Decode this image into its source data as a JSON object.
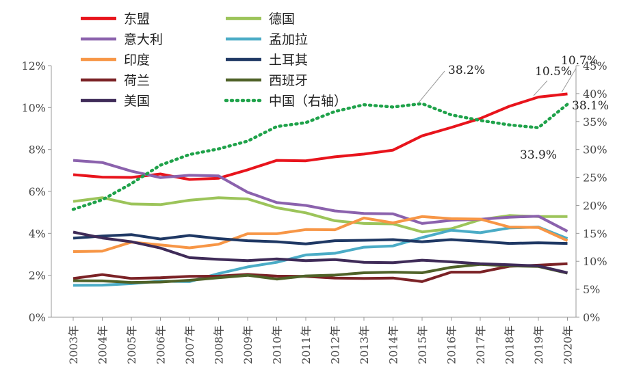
{
  "chart_data": {
    "type": "line",
    "categories": [
      "2003年",
      "2004年",
      "2005年",
      "2006年",
      "2007年",
      "2008年",
      "2009年",
      "2010年",
      "2011年",
      "2012年",
      "2013年",
      "2014年",
      "2015年",
      "2016年",
      "2017年",
      "2018年",
      "2019年",
      "2020年"
    ],
    "y_left": {
      "ticks": [
        "0%",
        "2%",
        "4%",
        "6%",
        "8%",
        "10%",
        "12%"
      ],
      "min": 0,
      "max": 12
    },
    "y_right": {
      "ticks": [
        "0%",
        "5%",
        "10%",
        "15%",
        "20%",
        "25%",
        "30%",
        "35%",
        "40%",
        "45%"
      ],
      "min": 0,
      "max": 45
    },
    "legend_columns": 2,
    "series": [
      {
        "name": "东盟",
        "axis": "left",
        "color": "#e8141c",
        "dashed": false,
        "values": [
          6.8,
          6.68,
          6.67,
          6.83,
          6.57,
          6.63,
          7.03,
          7.48,
          7.46,
          7.65,
          7.78,
          7.97,
          8.65,
          9.05,
          9.48,
          10.06,
          10.5,
          10.65
        ]
      },
      {
        "name": "德国",
        "axis": "left",
        "color": "#9cc45a",
        "dashed": false,
        "values": [
          5.52,
          5.7,
          5.4,
          5.37,
          5.58,
          5.7,
          5.64,
          5.22,
          4.98,
          4.6,
          4.47,
          4.45,
          4.07,
          4.22,
          4.65,
          4.85,
          4.8,
          4.8
        ]
      },
      {
        "name": "意大利",
        "axis": "left",
        "color": "#8b62ad",
        "dashed": false,
        "values": [
          7.48,
          7.38,
          6.97,
          6.66,
          6.77,
          6.74,
          5.96,
          5.47,
          5.33,
          5.07,
          4.95,
          4.93,
          4.47,
          4.62,
          4.67,
          4.77,
          4.82,
          4.1
        ]
      },
      {
        "name": "孟加拉",
        "axis": "left",
        "color": "#4bacc6",
        "dashed": false,
        "values": [
          1.52,
          1.53,
          1.6,
          1.72,
          1.7,
          2.08,
          2.4,
          2.62,
          2.97,
          3.05,
          3.34,
          3.4,
          3.8,
          4.15,
          4.03,
          4.26,
          4.3,
          3.75
        ]
      },
      {
        "name": "印度",
        "axis": "left",
        "color": "#f79646",
        "dashed": false,
        "values": [
          3.13,
          3.15,
          3.58,
          3.45,
          3.31,
          3.48,
          3.98,
          3.98,
          4.18,
          4.17,
          4.73,
          4.5,
          4.8,
          4.7,
          4.68,
          4.3,
          4.28,
          3.65
        ]
      },
      {
        "name": "土耳其",
        "axis": "left",
        "color": "#1f3864",
        "dashed": false,
        "values": [
          3.77,
          3.87,
          3.94,
          3.73,
          3.9,
          3.75,
          3.65,
          3.6,
          3.5,
          3.65,
          3.67,
          3.7,
          3.6,
          3.7,
          3.62,
          3.52,
          3.55,
          3.52
        ]
      },
      {
        "name": "荷兰",
        "axis": "left",
        "color": "#7b2226",
        "dashed": false,
        "values": [
          1.85,
          2.03,
          1.85,
          1.88,
          1.95,
          1.96,
          2.04,
          1.96,
          1.95,
          1.87,
          1.85,
          1.87,
          1.7,
          2.15,
          2.15,
          2.43,
          2.48,
          2.55
        ]
      },
      {
        "name": "西班牙",
        "axis": "left",
        "color": "#4f6228",
        "dashed": false,
        "values": [
          1.74,
          1.73,
          1.66,
          1.68,
          1.76,
          1.88,
          2.0,
          1.82,
          1.97,
          2.01,
          2.12,
          2.15,
          2.12,
          2.38,
          2.52,
          2.45,
          2.42,
          2.1
        ]
      },
      {
        "name": "美国",
        "axis": "left",
        "color": "#3f2b58",
        "dashed": false,
        "values": [
          4.06,
          3.78,
          3.6,
          3.3,
          2.84,
          2.76,
          2.7,
          2.78,
          2.7,
          2.75,
          2.62,
          2.6,
          2.72,
          2.64,
          2.55,
          2.5,
          2.45,
          2.12
        ]
      },
      {
        "name": "中国（右轴）",
        "axis": "right",
        "color": "#1fa24a",
        "dashed": true,
        "values": [
          19.3,
          21.0,
          23.9,
          27.2,
          29.1,
          30.1,
          31.5,
          34.1,
          34.8,
          36.8,
          38.0,
          37.6,
          38.2,
          36.2,
          35.2,
          34.4,
          33.9,
          38.1
        ]
      }
    ],
    "annotations": [
      "38.2%",
      "10.7%",
      "10.5%",
      "33.9%",
      "38.1%"
    ],
    "grid": false,
    "legend_position": "top-left"
  }
}
